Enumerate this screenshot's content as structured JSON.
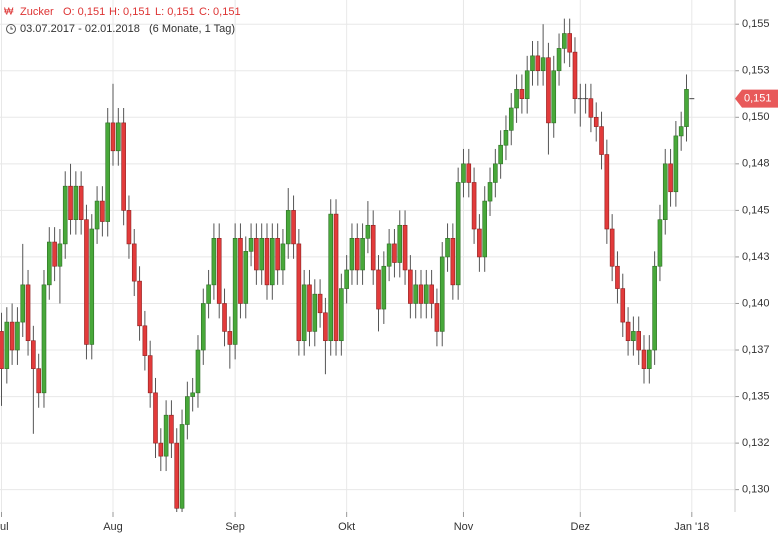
{
  "chart_data": {
    "type": "candlestick",
    "name": "Zucker",
    "header": [
      "O: 0,151",
      "H: 0,151",
      "L: 0,151",
      "C: 0,151"
    ],
    "date_range": "03.07.2017 - 02.01.2018",
    "period": "(6 Monate, 1 Tag)",
    "up_color": "#48a83a",
    "down_color": "#e23b3b",
    "grid": true,
    "ylim": [
      0.1288,
      0.1563
    ],
    "yticks": [
      {
        "value": 0.13,
        "label": "0,130"
      },
      {
        "value": 0.1325,
        "label": "0,132"
      },
      {
        "value": 0.135,
        "label": "0,135"
      },
      {
        "value": 0.1375,
        "label": "0,137"
      },
      {
        "value": 0.14,
        "label": "0,140"
      },
      {
        "value": 0.1425,
        "label": "0,143"
      },
      {
        "value": 0.145,
        "label": "0,145"
      },
      {
        "value": 0.1475,
        "label": "0,148"
      },
      {
        "value": 0.15,
        "label": "0,150"
      },
      {
        "value": 0.1525,
        "label": "0,153"
      },
      {
        "value": 0.155,
        "label": "0,155"
      }
    ],
    "last_value": 0.151,
    "last_label": "0,151",
    "categories": [
      "Jul",
      null,
      null,
      null,
      null,
      null,
      null,
      null,
      null,
      null,
      null,
      null,
      null,
      null,
      null,
      null,
      null,
      null,
      null,
      null,
      null,
      "Aug",
      null,
      null,
      null,
      null,
      null,
      null,
      null,
      null,
      null,
      null,
      null,
      null,
      null,
      null,
      null,
      null,
      null,
      null,
      null,
      null,
      null,
      null,
      "Sep",
      null,
      null,
      null,
      null,
      null,
      null,
      null,
      null,
      null,
      null,
      null,
      null,
      null,
      null,
      null,
      null,
      null,
      null,
      null,
      null,
      "Okt",
      null,
      null,
      null,
      null,
      null,
      null,
      null,
      null,
      null,
      null,
      null,
      null,
      null,
      null,
      null,
      null,
      null,
      null,
      null,
      null,
      null,
      "Nov",
      null,
      null,
      null,
      null,
      null,
      null,
      null,
      null,
      null,
      null,
      null,
      null,
      null,
      null,
      null,
      null,
      null,
      null,
      null,
      null,
      null,
      "Dez",
      null,
      null,
      null,
      null,
      null,
      null,
      null,
      null,
      null,
      null,
      null,
      null,
      null,
      null,
      null,
      null,
      null,
      null,
      null,
      null,
      "Jan '18"
    ],
    "open": [
      0.1385,
      0.1365,
      0.139,
      0.1375,
      0.139,
      0.141,
      0.138,
      0.1365,
      0.1352,
      0.141,
      0.1433,
      0.142,
      0.1432,
      0.1463,
      0.1445,
      0.1463,
      0.1445,
      0.1378,
      0.144,
      0.1455,
      0.1444,
      0.1497,
      0.1482,
      0.1497,
      0.145,
      0.1432,
      0.1412,
      0.1388,
      0.1372,
      0.1352,
      0.1325,
      0.1318,
      0.134,
      0.1325,
      0.129,
      0.1335,
      0.135,
      0.1352,
      0.1375,
      0.14,
      0.141,
      0.1435,
      0.14,
      0.1385,
      0.1378,
      0.1435,
      0.14,
      0.1428,
      0.1435,
      0.1418,
      0.1435,
      0.141,
      0.1435,
      0.1418,
      0.1432,
      0.145,
      0.1432,
      0.138,
      0.141,
      0.1385,
      0.1405,
      0.1395,
      0.138,
      0.1448,
      0.138,
      0.1408,
      0.1418,
      0.1435,
      0.1418,
      0.1435,
      0.1442,
      0.1418,
      0.1397,
      0.142,
      0.1432,
      0.1422,
      0.1442,
      0.1418,
      0.14,
      0.141,
      0.14,
      0.141,
      0.14,
      0.1385,
      0.1425,
      0.1435,
      0.141,
      0.1465,
      0.1475,
      0.1465,
      0.144,
      0.1425,
      0.1455,
      0.1465,
      0.1475,
      0.1485,
      0.1493,
      0.1505,
      0.1515,
      0.151,
      0.1525,
      0.1533,
      0.1525,
      0.1532,
      0.1497,
      0.1525,
      0.1537,
      0.1545,
      0.1535,
      0.151,
      0.151,
      0.151,
      0.15,
      0.1495,
      0.148,
      0.144,
      0.142,
      0.1408,
      0.139,
      0.138,
      0.1385,
      0.1375,
      0.1365,
      0.1375,
      0.142,
      0.1445,
      0.1475,
      0.146,
      0.149,
      0.1495,
      0.151
    ],
    "high": [
      0.1395,
      0.1398,
      0.14,
      0.1398,
      0.1432,
      0.1418,
      0.1388,
      0.1373,
      0.1418,
      0.1441,
      0.1441,
      0.144,
      0.1471,
      0.1475,
      0.1471,
      0.1471,
      0.1453,
      0.1448,
      0.1463,
      0.1463,
      0.1505,
      0.1518,
      0.1505,
      0.1505,
      0.1458,
      0.144,
      0.142,
      0.1396,
      0.138,
      0.136,
      0.1333,
      0.1348,
      0.1348,
      0.1333,
      0.1343,
      0.1358,
      0.136,
      0.1383,
      0.1408,
      0.1418,
      0.1443,
      0.1443,
      0.1408,
      0.1393,
      0.1443,
      0.1443,
      0.1436,
      0.1443,
      0.1443,
      0.1443,
      0.1443,
      0.1443,
      0.1443,
      0.144,
      0.1462,
      0.1458,
      0.144,
      0.1418,
      0.1418,
      0.1413,
      0.1413,
      0.1403,
      0.1456,
      0.1456,
      0.1416,
      0.1426,
      0.1443,
      0.1443,
      0.1443,
      0.1455,
      0.145,
      0.1426,
      0.1428,
      0.144,
      0.144,
      0.145,
      0.145,
      0.1426,
      0.1418,
      0.1418,
      0.1418,
      0.1418,
      0.1408,
      0.1433,
      0.1443,
      0.1443,
      0.1473,
      0.1483,
      0.1483,
      0.1473,
      0.1448,
      0.1463,
      0.1473,
      0.1483,
      0.1493,
      0.1501,
      0.1513,
      0.1523,
      0.1523,
      0.1533,
      0.1541,
      0.1541,
      0.155,
      0.154,
      0.1533,
      0.1545,
      0.1553,
      0.1553,
      0.1543,
      0.1518,
      0.1518,
      0.1518,
      0.1508,
      0.1503,
      0.1488,
      0.1448,
      0.1428,
      0.1416,
      0.1398,
      0.1393,
      0.1393,
      0.1383,
      0.1383,
      0.1428,
      0.1453,
      0.1483,
      0.1483,
      0.1498,
      0.1503,
      0.1523,
      0.151
    ],
    "low": [
      0.1345,
      0.1357,
      0.1367,
      0.1367,
      0.1382,
      0.1372,
      0.133,
      0.1344,
      0.1344,
      0.1402,
      0.1412,
      0.14,
      0.1424,
      0.1437,
      0.1437,
      0.1437,
      0.137,
      0.137,
      0.1432,
      0.1436,
      0.1436,
      0.1474,
      0.1474,
      0.1442,
      0.1424,
      0.1404,
      0.138,
      0.1364,
      0.1344,
      0.1317,
      0.131,
      0.131,
      0.1317,
      0.1288,
      0.1288,
      0.1327,
      0.1342,
      0.1344,
      0.1367,
      0.1392,
      0.1402,
      0.1392,
      0.1377,
      0.1365,
      0.137,
      0.1392,
      0.1392,
      0.142,
      0.141,
      0.141,
      0.1402,
      0.1402,
      0.141,
      0.141,
      0.1424,
      0.1424,
      0.1372,
      0.1372,
      0.1377,
      0.1377,
      0.1387,
      0.1362,
      0.1372,
      0.1372,
      0.1372,
      0.14,
      0.141,
      0.141,
      0.141,
      0.1427,
      0.141,
      0.1385,
      0.1389,
      0.1412,
      0.1414,
      0.1414,
      0.141,
      0.1392,
      0.1392,
      0.1392,
      0.1392,
      0.1392,
      0.1377,
      0.1377,
      0.1417,
      0.1402,
      0.1402,
      0.1457,
      0.1457,
      0.1432,
      0.1417,
      0.1417,
      0.1447,
      0.1457,
      0.1467,
      0.1477,
      0.1485,
      0.1497,
      0.1502,
      0.1502,
      0.1517,
      0.1517,
      0.1517,
      0.148,
      0.1489,
      0.1517,
      0.1529,
      0.1527,
      0.1502,
      0.1495,
      0.1502,
      0.1492,
      0.1487,
      0.1472,
      0.1432,
      0.1412,
      0.14,
      0.1382,
      0.1372,
      0.1372,
      0.1367,
      0.1357,
      0.1357,
      0.1367,
      0.1412,
      0.1437,
      0.1452,
      0.1452,
      0.1482,
      0.1487,
      0.151
    ],
    "close": [
      0.1365,
      0.139,
      0.1375,
      0.139,
      0.141,
      0.138,
      0.1365,
      0.1352,
      0.141,
      0.1433,
      0.142,
      0.1432,
      0.1463,
      0.1445,
      0.1463,
      0.1445,
      0.1378,
      0.144,
      0.1455,
      0.1444,
      0.1497,
      0.1482,
      0.1497,
      0.145,
      0.1432,
      0.1412,
      0.1388,
      0.1372,
      0.1352,
      0.1325,
      0.1318,
      0.134,
      0.1325,
      0.129,
      0.1335,
      0.135,
      0.1352,
      0.1375,
      0.14,
      0.141,
      0.1435,
      0.14,
      0.1385,
      0.1378,
      0.1435,
      0.14,
      0.1428,
      0.1435,
      0.1418,
      0.1435,
      0.141,
      0.1435,
      0.1418,
      0.1432,
      0.145,
      0.1432,
      0.138,
      0.141,
      0.1385,
      0.1405,
      0.1395,
      0.138,
      0.1448,
      0.138,
      0.1408,
      0.1418,
      0.1435,
      0.1418,
      0.1435,
      0.1442,
      0.1418,
      0.1397,
      0.142,
      0.1432,
      0.1422,
      0.1442,
      0.1418,
      0.14,
      0.141,
      0.14,
      0.141,
      0.14,
      0.1385,
      0.1425,
      0.1435,
      0.141,
      0.1465,
      0.1475,
      0.1465,
      0.144,
      0.1425,
      0.1455,
      0.1465,
      0.1475,
      0.1485,
      0.1493,
      0.1505,
      0.1515,
      0.151,
      0.1525,
      0.1533,
      0.1525,
      0.1532,
      0.1497,
      0.1525,
      0.1537,
      0.1545,
      0.1535,
      0.151,
      0.151,
      0.151,
      0.15,
      0.1495,
      0.148,
      0.144,
      0.142,
      0.1408,
      0.139,
      0.138,
      0.1385,
      0.1375,
      0.1365,
      0.1375,
      0.142,
      0.1445,
      0.1475,
      0.146,
      0.149,
      0.1495,
      0.1515,
      0.151
    ]
  }
}
